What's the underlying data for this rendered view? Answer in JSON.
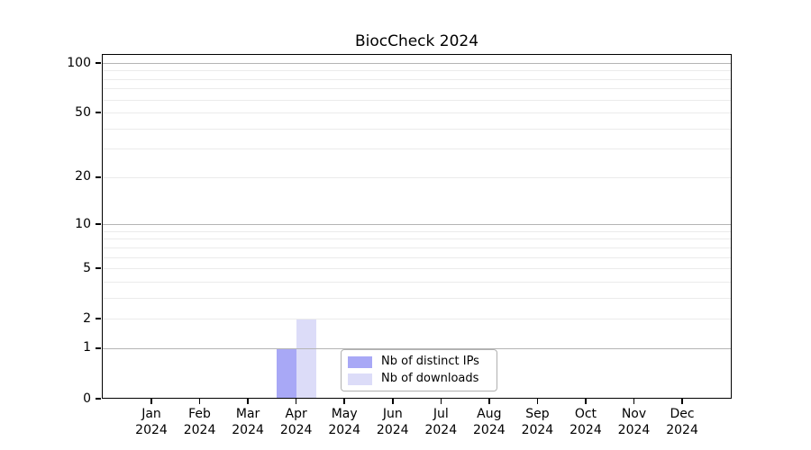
{
  "chart_data": {
    "type": "bar",
    "title": "BiocCheck 2024",
    "categories": [
      "Jan",
      "Feb",
      "Mar",
      "Apr",
      "May",
      "Jun",
      "Jul",
      "Aug",
      "Sep",
      "Oct",
      "Nov",
      "Dec"
    ],
    "category_year": "2024",
    "series": [
      {
        "name": "Nb of distinct IPs",
        "color": "#a8a8f6",
        "values": [
          0,
          0,
          0,
          1,
          0,
          0,
          0,
          0,
          0,
          0,
          0,
          0
        ]
      },
      {
        "name": "Nb of downloads",
        "color": "#dcdcf8",
        "values": [
          0,
          0,
          0,
          2,
          0,
          0,
          0,
          0,
          0,
          0,
          0,
          0
        ]
      }
    ],
    "xlabel": "",
    "ylabel": "",
    "yscale": "log1p",
    "y_ticks": [
      0,
      1,
      2,
      5,
      10,
      20,
      50,
      100
    ],
    "ylim": [
      0,
      113
    ],
    "grid": {
      "major": [
        1,
        10,
        100
      ],
      "minor": [
        2,
        3,
        4,
        5,
        6,
        7,
        8,
        9,
        20,
        30,
        40,
        50,
        60,
        70,
        80,
        90
      ]
    },
    "legend": {
      "position": "lower-center",
      "entries": [
        "Nb of distinct IPs",
        "Nb of downloads"
      ]
    }
  },
  "colors": {
    "grid_major": "#b5b5b5",
    "grid_minor": "#ebebeb",
    "axis": "#000000",
    "text": "#000000",
    "background": "#ffffff"
  }
}
